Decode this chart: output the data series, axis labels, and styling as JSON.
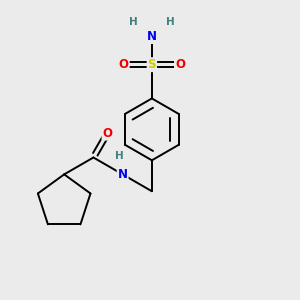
{
  "bg_color": "#ebebeb",
  "atom_colors": {
    "C": "#000000",
    "N": "#0000ee",
    "O": "#ee0000",
    "S": "#cccc00",
    "H": "#408080"
  },
  "bond_color": "#000000",
  "bond_width": 1.4,
  "font_size_atom": 8.5,
  "font_size_H": 7.5,
  "xlim": [
    0.0,
    3.0
  ],
  "ylim": [
    0.0,
    3.2
  ]
}
